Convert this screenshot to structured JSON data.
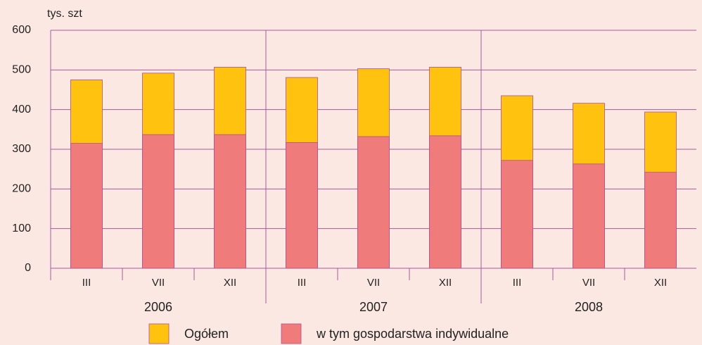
{
  "chart_data": {
    "type": "bar",
    "unit_label": "tys. szt",
    "categories": [
      "III",
      "VII",
      "XII",
      "III",
      "VII",
      "XII",
      "III",
      "VII",
      "XII"
    ],
    "groups": [
      "2006",
      "2007",
      "2008"
    ],
    "series": [
      {
        "name": "Ogółem",
        "color": "#ffc20e",
        "values": [
          475,
          492,
          507,
          481,
          503,
          507,
          435,
          416,
          394
        ]
      },
      {
        "name": "w tym gospodarstwa indywidualne",
        "color": "#f07b7b",
        "values": [
          315,
          337,
          337,
          317,
          332,
          334,
          272,
          263,
          242
        ]
      }
    ],
    "ylim": [
      0,
      600
    ],
    "yticks": [
      0,
      100,
      200,
      300,
      400,
      500,
      600
    ],
    "grid": true
  }
}
